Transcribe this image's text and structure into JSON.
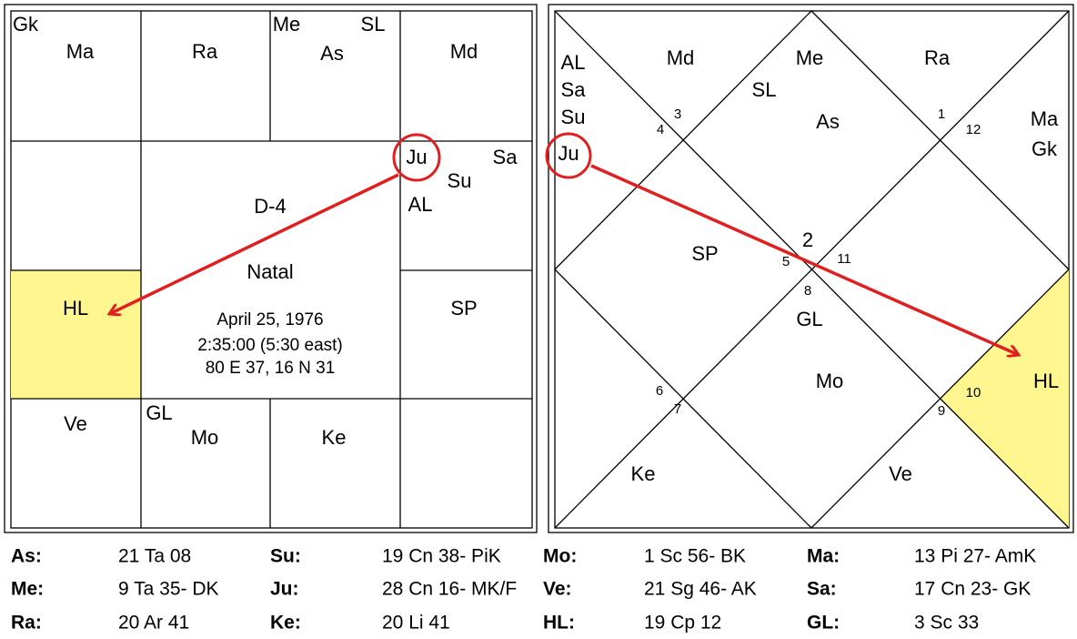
{
  "left_chart": {
    "labels": [
      "Gk",
      "Ma",
      "Ra",
      "Me",
      "As",
      "SL",
      "Md",
      "Ju",
      "Sa",
      "Su",
      "AL",
      "HL",
      "SP",
      "Ve",
      "GL",
      "Mo",
      "Ke"
    ],
    "center": [
      "D-4",
      "Natal",
      "April 25, 1976",
      "2:35:00 (5:30 east)",
      "80 E 37, 16 N 31"
    ]
  },
  "right_chart": {
    "labels": [
      "AL",
      "Sa",
      "Su",
      "Ju",
      "Md",
      "Me",
      "SL",
      "As",
      "Ra",
      "Ma",
      "Gk",
      "SP",
      "2",
      "GL",
      "Mo",
      "HL",
      "Ke",
      "Ve"
    ],
    "house_numbers": [
      "3",
      "4",
      "1",
      "12",
      "5",
      "11",
      "8",
      "6",
      "7",
      "9",
      "10"
    ]
  },
  "positions": [
    [
      "As:",
      "21 Ta 08"
    ],
    [
      "Su:",
      "19 Cn 38- PiK"
    ],
    [
      "Mo:",
      "1 Sc 56- BK"
    ],
    [
      "Ma:",
      "13 Pi 27- AmK"
    ],
    [
      "Me:",
      "9 Ta 35- DK"
    ],
    [
      "Ju:",
      "28 Cn 16- MK/F"
    ],
    [
      "Ve:",
      "21 Sg 46- AK"
    ],
    [
      "Sa:",
      "17 Cn 23- GK"
    ],
    [
      "Ra:",
      "20 Ar 41"
    ],
    [
      "Ke:",
      "20 Li 41"
    ],
    [
      "HL:",
      "19 Cp 12"
    ],
    [
      "GL:",
      "3 Sc 33"
    ]
  ]
}
